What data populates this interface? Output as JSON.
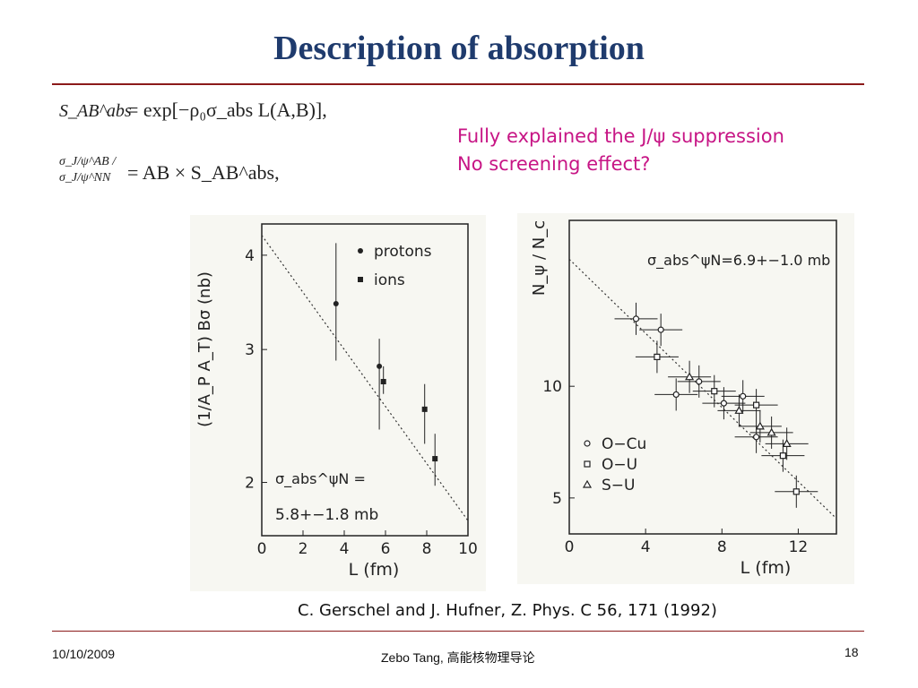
{
  "slide": {
    "title": "Description of absorption",
    "eq1_lhs": "S_AB^abs",
    "eq1_rhs": "= exp[−ρ₀σ_abs L(A,B)],",
    "eq2_lhs": "σ_J/ψ^AB / σ_J/ψ^NN",
    "eq2_rhs": "= AB × S_AB^abs,",
    "note_line1": "Fully explained the J/ψ suppression",
    "note_line2": "No screening effect?",
    "citation": "C. Gerschel and J. Hufner, Z. Phys. C 56, 171 (1992)",
    "footer_date": "10/10/2009",
    "footer_author": "Zebo Tang, 高能核物理导论",
    "page_number": "18"
  },
  "chart_data": [
    {
      "type": "scatter",
      "ylabel": "(1/A_P A_T) Bσ (nb)",
      "xlabel": "L (fm)",
      "xticks": [
        0,
        2,
        4,
        6,
        8,
        10
      ],
      "yticks": [
        2,
        3,
        4
      ],
      "xlim": [
        0,
        10
      ],
      "ylim": [
        1.7,
        4.4
      ],
      "log_y": true,
      "legend": [
        "protons",
        "ions"
      ],
      "annotation_line1": "σ_abs^ψN =",
      "annotation_line2": "5.8+−1.8 mb",
      "series": [
        {
          "name": "protons",
          "marker": "circle",
          "points": [
            {
              "x": 3.6,
              "y": 3.45,
              "ylo": 2.9,
              "yhi": 4.15
            },
            {
              "x": 5.7,
              "y": 2.85,
              "ylo": 2.35,
              "yhi": 3.1
            }
          ]
        },
        {
          "name": "ions",
          "marker": "square",
          "points": [
            {
              "x": 5.9,
              "y": 2.72,
              "ylo": 2.62,
              "yhi": 2.85
            },
            {
              "x": 7.9,
              "y": 2.5,
              "ylo": 2.25,
              "yhi": 2.7
            },
            {
              "x": 8.4,
              "y": 2.15,
              "ylo": 1.98,
              "yhi": 2.32
            }
          ]
        }
      ],
      "fit_line": [
        {
          "x": 0,
          "y": 4.25
        },
        {
          "x": 10,
          "y": 1.78
        }
      ]
    },
    {
      "type": "scatter",
      "ylabel": "N_ψ / N_c",
      "xlabel": "L (fm)",
      "xticks": [
        0,
        4,
        8,
        12
      ],
      "yticks": [
        5,
        10
      ],
      "xlim": [
        0,
        14
      ],
      "ylim": [
        4,
        28
      ],
      "log_y": true,
      "annotation": "σ_abs^ψN=6.9+−1.0 mb",
      "legend": [
        "O−Cu",
        "O−U",
        "S−U"
      ],
      "series": [
        {
          "name": "O−Cu",
          "marker": "circle",
          "points": [
            {
              "x": 3.5,
              "y": 15.2
            },
            {
              "x": 4.8,
              "y": 14.2
            },
            {
              "x": 5.6,
              "y": 9.5
            },
            {
              "x": 6.8,
              "y": 10.3
            },
            {
              "x": 8.1,
              "y": 9.0
            },
            {
              "x": 9.1,
              "y": 9.4
            },
            {
              "x": 9.8,
              "y": 7.3
            }
          ]
        },
        {
          "name": "O−U",
          "marker": "square",
          "points": [
            {
              "x": 4.6,
              "y": 12.0
            },
            {
              "x": 7.6,
              "y": 9.7
            },
            {
              "x": 9.8,
              "y": 8.9
            },
            {
              "x": 11.2,
              "y": 6.5
            },
            {
              "x": 11.9,
              "y": 5.2
            }
          ]
        },
        {
          "name": "S−U",
          "marker": "triangle",
          "points": [
            {
              "x": 6.3,
              "y": 10.6
            },
            {
              "x": 8.9,
              "y": 8.6
            },
            {
              "x": 10.0,
              "y": 7.8
            },
            {
              "x": 10.6,
              "y": 7.5
            },
            {
              "x": 11.4,
              "y": 7.0
            }
          ]
        }
      ],
      "fit_line": [
        {
          "x": 0,
          "y": 22
        },
        {
          "x": 14,
          "y": 4.4
        }
      ]
    }
  ]
}
